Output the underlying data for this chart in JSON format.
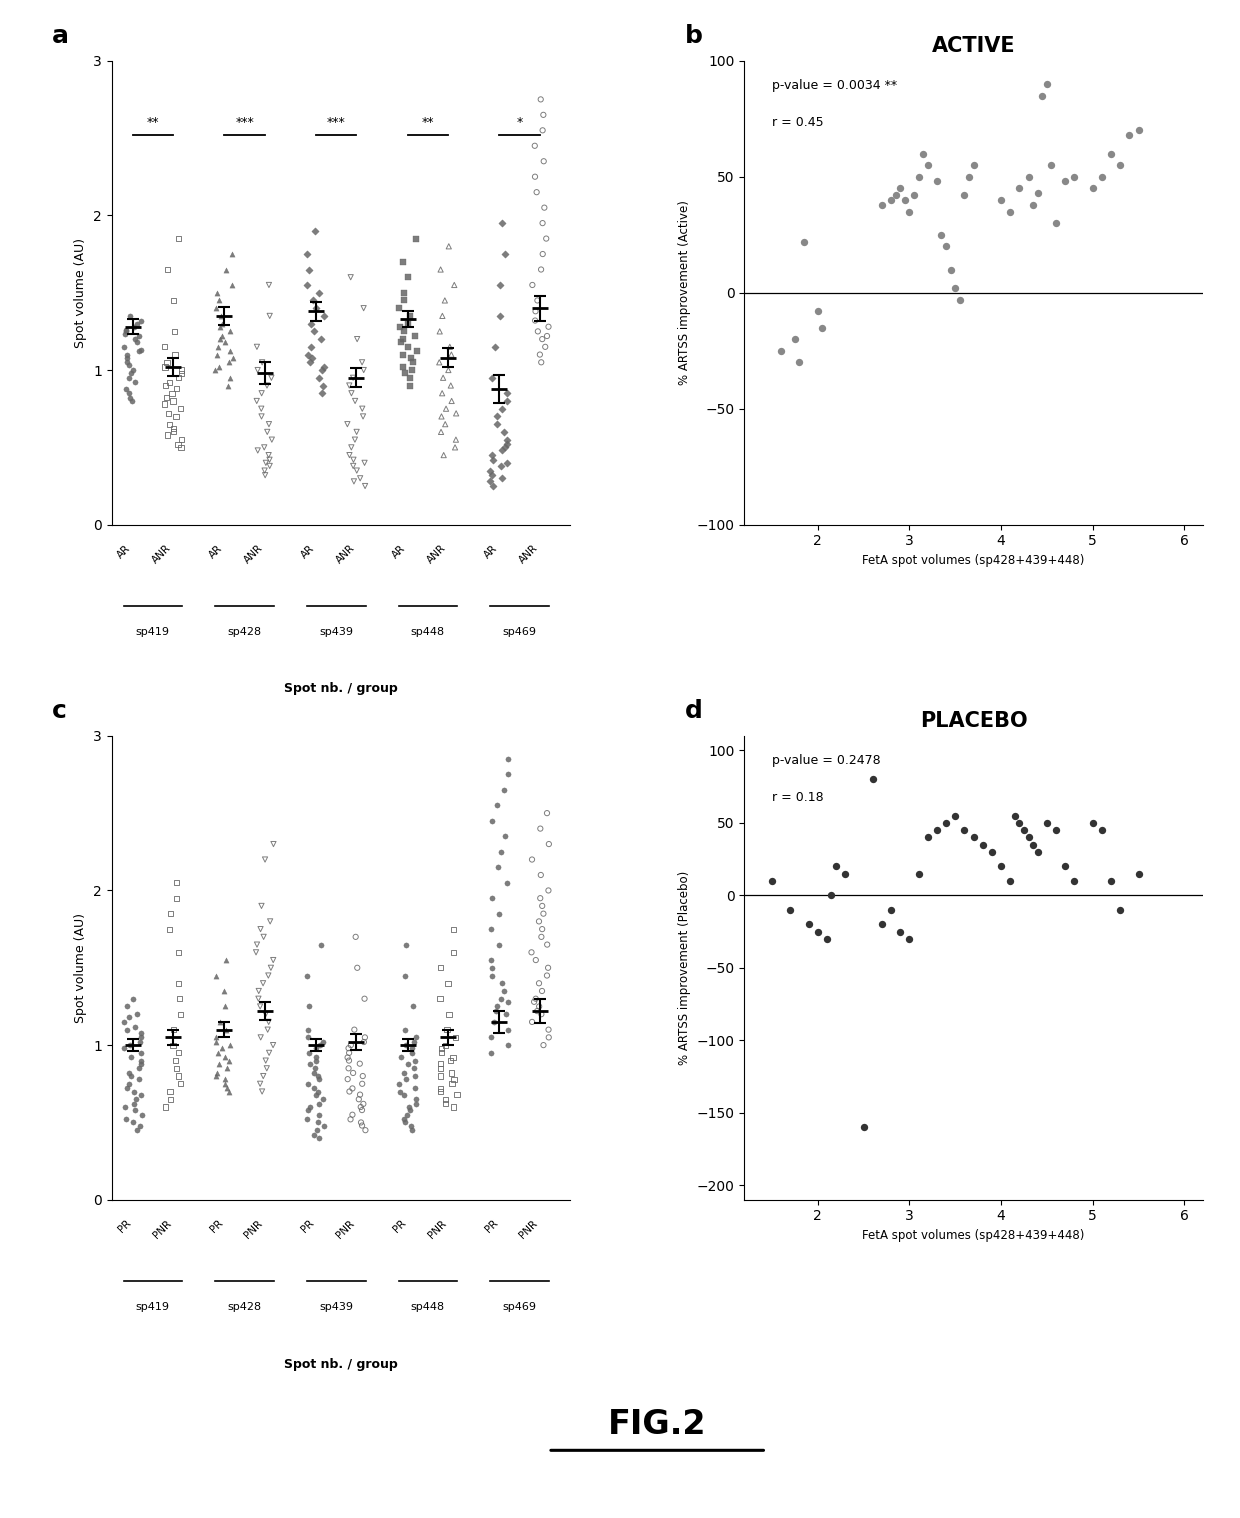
{
  "fig_width": 12.4,
  "fig_height": 15.18,
  "background_color": "#ffffff",
  "panel_a": {
    "ylabel": "Spot volume (AU)",
    "xlabel": "Spot nb. / group",
    "ylim": [
      0,
      3.0
    ],
    "yticks": [
      0,
      1,
      2,
      3
    ],
    "groups": [
      "sp419",
      "sp428",
      "sp439",
      "sp448",
      "sp469"
    ],
    "significance": [
      "**",
      "***",
      "***",
      "**",
      "*"
    ],
    "markers_AR": [
      "o",
      "^",
      "D",
      "s",
      "D"
    ],
    "markers_ANR": [
      "s",
      "v",
      "v",
      "^",
      "o"
    ],
    "sp419_AR": [
      1.35,
      1.32,
      1.3,
      1.28,
      1.26,
      1.25,
      1.23,
      1.22,
      1.2,
      1.18,
      1.15,
      1.13,
      1.12,
      1.1,
      1.08,
      1.05,
      1.03,
      1.0,
      0.98,
      0.95,
      0.92,
      0.88,
      0.85,
      0.82,
      0.8
    ],
    "sp419_ANR": [
      1.85,
      1.65,
      1.45,
      1.25,
      1.15,
      1.1,
      1.05,
      1.02,
      1.0,
      0.98,
      0.95,
      0.92,
      0.9,
      0.88,
      0.85,
      0.82,
      0.8,
      0.78,
      0.75,
      0.72,
      0.7,
      0.65,
      0.62,
      0.6,
      0.58,
      0.55,
      0.52,
      0.5
    ],
    "sp428_AR": [
      1.75,
      1.65,
      1.55,
      1.5,
      1.45,
      1.4,
      1.35,
      1.3,
      1.28,
      1.25,
      1.22,
      1.2,
      1.18,
      1.15,
      1.12,
      1.1,
      1.08,
      1.05,
      1.02,
      1.0,
      0.95,
      0.9
    ],
    "sp428_ANR": [
      1.55,
      1.35,
      1.15,
      1.05,
      1.0,
      0.95,
      0.9,
      0.85,
      0.8,
      0.75,
      0.7,
      0.65,
      0.6,
      0.55,
      0.5,
      0.48,
      0.45,
      0.42,
      0.4,
      0.38,
      0.35,
      0.32
    ],
    "sp439_AR": [
      1.9,
      1.75,
      1.65,
      1.55,
      1.5,
      1.45,
      1.4,
      1.35,
      1.3,
      1.25,
      1.2,
      1.15,
      1.1,
      1.08,
      1.05,
      1.02,
      1.0,
      0.95,
      0.9,
      0.85
    ],
    "sp439_ANR": [
      1.6,
      1.4,
      1.2,
      1.05,
      1.0,
      0.95,
      0.9,
      0.85,
      0.8,
      0.75,
      0.7,
      0.65,
      0.6,
      0.55,
      0.5,
      0.45,
      0.42,
      0.4,
      0.38,
      0.35,
      0.3,
      0.28,
      0.25
    ],
    "sp448_AR": [
      1.85,
      1.7,
      1.6,
      1.5,
      1.45,
      1.4,
      1.35,
      1.3,
      1.28,
      1.25,
      1.22,
      1.2,
      1.18,
      1.15,
      1.12,
      1.1,
      1.08,
      1.05,
      1.02,
      1.0,
      0.98,
      0.95,
      0.9
    ],
    "sp448_ANR": [
      1.8,
      1.65,
      1.55,
      1.45,
      1.35,
      1.25,
      1.15,
      1.1,
      1.05,
      1.0,
      0.95,
      0.9,
      0.85,
      0.8,
      0.75,
      0.72,
      0.7,
      0.65,
      0.6,
      0.55,
      0.5,
      0.45
    ],
    "sp469_AR": [
      1.95,
      1.75,
      1.55,
      1.35,
      1.15,
      0.95,
      0.85,
      0.8,
      0.75,
      0.7,
      0.65,
      0.6,
      0.55,
      0.52,
      0.5,
      0.48,
      0.45,
      0.42,
      0.4,
      0.38,
      0.35,
      0.32,
      0.3,
      0.28,
      0.25
    ],
    "sp469_ANR": [
      2.75,
      2.65,
      2.55,
      2.45,
      2.35,
      2.25,
      2.15,
      2.05,
      1.95,
      1.85,
      1.75,
      1.65,
      1.55,
      1.45,
      1.38,
      1.32,
      1.28,
      1.25,
      1.22,
      1.2,
      1.15,
      1.1,
      1.05
    ],
    "mean_AR": [
      1.28,
      1.35,
      1.38,
      1.33,
      0.88
    ],
    "mean_ANR": [
      1.02,
      0.98,
      0.95,
      1.08,
      1.4
    ],
    "sem_AR": [
      0.05,
      0.06,
      0.06,
      0.05,
      0.09
    ],
    "sem_ANR": [
      0.06,
      0.07,
      0.06,
      0.06,
      0.08
    ]
  },
  "panel_b": {
    "title": "ACTIVE",
    "xlabel": "FetA spot volumes (sp428+439+448)",
    "ylabel": "% ARTSS improvement (Active)",
    "xlim": [
      1.2,
      6.2
    ],
    "ylim": [
      -100,
      100
    ],
    "xticks": [
      2,
      3,
      4,
      5,
      6
    ],
    "yticks": [
      -100,
      -50,
      0,
      50,
      100
    ],
    "pvalue_text": "p-value = 0.0034 **",
    "r_text": "r = 0.45",
    "x": [
      1.6,
      1.75,
      1.8,
      1.85,
      2.0,
      2.05,
      2.7,
      2.8,
      2.85,
      2.9,
      2.95,
      3.0,
      3.05,
      3.1,
      3.15,
      3.2,
      3.3,
      3.35,
      3.4,
      3.45,
      3.5,
      3.55,
      3.6,
      3.65,
      3.7,
      4.0,
      4.1,
      4.2,
      4.3,
      4.35,
      4.4,
      4.45,
      4.5,
      4.55,
      4.6,
      4.7,
      4.8,
      5.0,
      5.1,
      5.2,
      5.3,
      5.4,
      5.5
    ],
    "y": [
      -25,
      -20,
      -30,
      22,
      -8,
      -15,
      38,
      40,
      42,
      45,
      40,
      35,
      42,
      50,
      60,
      55,
      48,
      25,
      20,
      10,
      2,
      -3,
      42,
      50,
      55,
      40,
      35,
      45,
      50,
      38,
      43,
      85,
      90,
      55,
      30,
      48,
      50,
      45,
      50,
      60,
      55,
      68,
      70
    ]
  },
  "panel_c": {
    "ylabel": "Spot volume (AU)",
    "xlabel": "Spot nb. / group",
    "ylim": [
      0,
      3.0
    ],
    "yticks": [
      0,
      1,
      2,
      3
    ],
    "groups": [
      "sp419",
      "sp428",
      "sp439",
      "sp448",
      "sp469"
    ],
    "markers_PR": [
      "o",
      "^",
      "o",
      "o",
      "o"
    ],
    "markers_PNR": [
      "s",
      "v",
      "o",
      "s",
      "o"
    ],
    "sp419_PR": [
      1.3,
      1.25,
      1.2,
      1.18,
      1.15,
      1.12,
      1.1,
      1.08,
      1.05,
      1.02,
      1.0,
      0.98,
      0.95,
      0.92,
      0.9,
      0.88,
      0.85,
      0.82,
      0.8,
      0.78,
      0.75,
      0.72,
      0.7,
      0.68,
      0.65,
      0.62,
      0.6,
      0.58,
      0.55,
      0.52,
      0.5,
      0.48,
      0.45
    ],
    "sp419_PNR": [
      2.05,
      1.95,
      1.85,
      1.75,
      1.6,
      1.4,
      1.3,
      1.2,
      1.1,
      1.0,
      0.95,
      0.9,
      0.85,
      0.8,
      0.75,
      0.7,
      0.65,
      0.6
    ],
    "sp428_PR": [
      1.55,
      1.45,
      1.35,
      1.25,
      1.15,
      1.1,
      1.05,
      1.02,
      1.0,
      0.98,
      0.95,
      0.92,
      0.9,
      0.88,
      0.85,
      0.82,
      0.8,
      0.78,
      0.75,
      0.72,
      0.7
    ],
    "sp428_PNR": [
      2.3,
      2.2,
      1.9,
      1.8,
      1.75,
      1.7,
      1.65,
      1.6,
      1.55,
      1.5,
      1.45,
      1.4,
      1.35,
      1.3,
      1.25,
      1.2,
      1.15,
      1.1,
      1.05,
      1.0,
      0.95,
      0.9,
      0.85,
      0.8,
      0.75,
      0.7
    ],
    "sp439_PR": [
      1.65,
      1.45,
      1.25,
      1.1,
      1.05,
      1.02,
      1.0,
      0.98,
      0.95,
      0.92,
      0.9,
      0.88,
      0.85,
      0.82,
      0.8,
      0.78,
      0.75,
      0.72,
      0.7,
      0.68,
      0.65,
      0.62,
      0.6,
      0.58,
      0.55,
      0.52,
      0.5,
      0.48,
      0.45,
      0.42,
      0.4
    ],
    "sp439_PNR": [
      1.7,
      1.5,
      1.3,
      1.1,
      1.05,
      1.02,
      1.0,
      0.98,
      0.95,
      0.92,
      0.9,
      0.88,
      0.85,
      0.82,
      0.8,
      0.78,
      0.75,
      0.72,
      0.7,
      0.68,
      0.65,
      0.62,
      0.6,
      0.58,
      0.55,
      0.52,
      0.5,
      0.48,
      0.45
    ],
    "sp448_PR": [
      1.65,
      1.45,
      1.25,
      1.1,
      1.05,
      1.02,
      1.0,
      0.98,
      0.95,
      0.92,
      0.9,
      0.88,
      0.85,
      0.82,
      0.8,
      0.78,
      0.75,
      0.72,
      0.7,
      0.68,
      0.65,
      0.62,
      0.6,
      0.58,
      0.55,
      0.52,
      0.5,
      0.48,
      0.45
    ],
    "sp448_PNR": [
      1.75,
      1.6,
      1.5,
      1.4,
      1.3,
      1.2,
      1.1,
      1.05,
      1.0,
      0.98,
      0.95,
      0.92,
      0.9,
      0.88,
      0.85,
      0.82,
      0.8,
      0.78,
      0.75,
      0.72,
      0.7,
      0.68,
      0.65,
      0.62,
      0.6
    ],
    "sp469_PR": [
      2.85,
      2.75,
      2.65,
      2.55,
      2.45,
      2.35,
      2.25,
      2.15,
      2.05,
      1.95,
      1.85,
      1.75,
      1.65,
      1.55,
      1.5,
      1.45,
      1.4,
      1.35,
      1.3,
      1.28,
      1.25,
      1.22,
      1.2,
      1.15,
      1.1,
      1.05,
      1.0,
      0.95
    ],
    "sp469_PNR": [
      2.5,
      2.4,
      2.3,
      2.2,
      2.1,
      2.0,
      1.95,
      1.9,
      1.85,
      1.8,
      1.75,
      1.7,
      1.65,
      1.6,
      1.55,
      1.5,
      1.45,
      1.4,
      1.35,
      1.3,
      1.28,
      1.25,
      1.22,
      1.2,
      1.15,
      1.1,
      1.05,
      1.0
    ],
    "mean_PR": [
      1.0,
      1.1,
      1.0,
      1.0,
      1.15
    ],
    "mean_PNR": [
      1.05,
      1.22,
      1.02,
      1.05,
      1.22
    ],
    "sem_PR": [
      0.04,
      0.05,
      0.04,
      0.04,
      0.07
    ],
    "sem_PNR": [
      0.05,
      0.06,
      0.05,
      0.05,
      0.08
    ]
  },
  "panel_d": {
    "title": "PLACEBO",
    "xlabel": "FetA spot volumes (sp428+439+448)",
    "ylabel": "% ARTSS improvement (Placebo)",
    "xlim": [
      1.2,
      6.2
    ],
    "ylim": [
      -210,
      110
    ],
    "xticks": [
      2,
      3,
      4,
      5,
      6
    ],
    "yticks": [
      -200,
      -150,
      -100,
      -50,
      0,
      50,
      100
    ],
    "pvalue_text": "p-value = 0.2478",
    "r_text": "r = 0.18",
    "x": [
      1.5,
      1.7,
      1.9,
      2.0,
      2.1,
      2.15,
      2.2,
      2.3,
      2.5,
      2.6,
      2.7,
      2.8,
      2.9,
      3.0,
      3.1,
      3.2,
      3.3,
      3.4,
      3.5,
      3.6,
      3.7,
      3.8,
      3.9,
      4.0,
      4.1,
      4.15,
      4.2,
      4.25,
      4.3,
      4.35,
      4.4,
      4.5,
      4.6,
      4.7,
      4.8,
      5.0,
      5.1,
      5.2,
      5.3,
      5.5
    ],
    "y": [
      10,
      -10,
      -20,
      -25,
      -30,
      0,
      20,
      15,
      -160,
      80,
      -20,
      -10,
      -25,
      -30,
      15,
      40,
      45,
      50,
      55,
      45,
      40,
      35,
      30,
      20,
      10,
      55,
      50,
      45,
      40,
      35,
      30,
      50,
      45,
      20,
      10,
      50,
      45,
      10,
      -10,
      15
    ]
  },
  "fig_label_fontsize": 18,
  "dot_color": "#666666",
  "scatter_color_b": "#888888",
  "scatter_color_d": "#333333"
}
